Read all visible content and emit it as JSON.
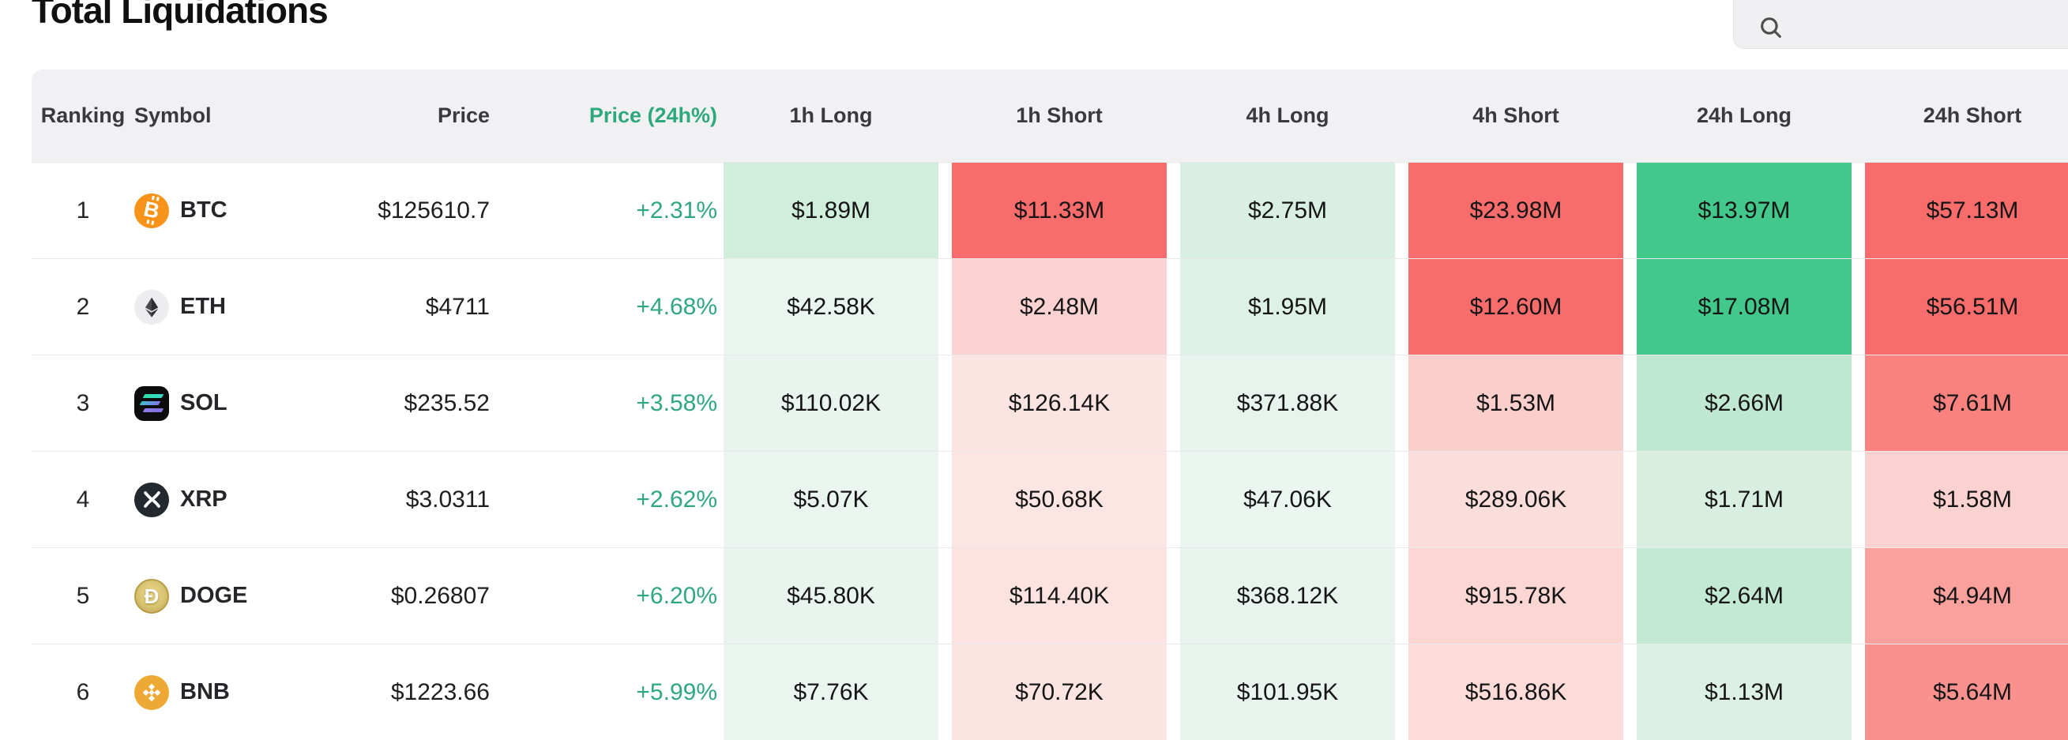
{
  "page": {
    "title": "Total Liquidations"
  },
  "search": {
    "value": ""
  },
  "colors": {
    "positive_text": "#2fa87e",
    "strong_red": "#f96c6c",
    "strong_green": "#42c88b",
    "header_bg": "#f1f1f4"
  },
  "table": {
    "headers": [
      "Ranking",
      "Symbol",
      "Price",
      "Price (24h%)",
      "1h Long",
      "1h Short",
      "4h Long",
      "4h Short",
      "24h Long",
      "24h Short"
    ],
    "rows": [
      {
        "ranking": "1",
        "symbol": "BTC",
        "icon": "btc",
        "price": "$125610.7",
        "change": "+2.31%",
        "cells": [
          {
            "label": "1h Long",
            "value": "$1.89M",
            "bg": "#d1eedd"
          },
          {
            "label": "1h Short",
            "value": "$11.33M",
            "bg": "#f96c6c"
          },
          {
            "label": "4h Long",
            "value": "$2.75M",
            "bg": "#d9efe4"
          },
          {
            "label": "4h Short",
            "value": "$23.98M",
            "bg": "#f96c6c"
          },
          {
            "label": "24h Long",
            "value": "$13.97M",
            "bg": "#42c88b"
          },
          {
            "label": "24h Short",
            "value": "$57.13M",
            "bg": "#f96c6c"
          }
        ]
      },
      {
        "ranking": "2",
        "symbol": "ETH",
        "icon": "eth",
        "price": "$4711",
        "change": "+4.68%",
        "cells": [
          {
            "label": "1h Long",
            "value": "$42.58K",
            "bg": "#e9f5ee"
          },
          {
            "label": "1h Short",
            "value": "$2.48M",
            "bg": "#fad2d1"
          },
          {
            "label": "4h Long",
            "value": "$1.95M",
            "bg": "#def1e7"
          },
          {
            "label": "4h Short",
            "value": "$12.60M",
            "bg": "#f96c6c"
          },
          {
            "label": "24h Long",
            "value": "$17.08M",
            "bg": "#42c88b"
          },
          {
            "label": "24h Short",
            "value": "$56.51M",
            "bg": "#f96c6c"
          }
        ]
      },
      {
        "ranking": "3",
        "symbol": "SOL",
        "icon": "sol",
        "price": "$235.52",
        "change": "+3.58%",
        "cells": [
          {
            "label": "1h Long",
            "value": "$110.02K",
            "bg": "#e8f4ed"
          },
          {
            "label": "1h Short",
            "value": "$126.14K",
            "bg": "#fce4e2"
          },
          {
            "label": "4h Long",
            "value": "$371.88K",
            "bg": "#e7f3ec"
          },
          {
            "label": "4h Short",
            "value": "$1.53M",
            "bg": "#f9cecb"
          },
          {
            "label": "24h Long",
            "value": "$2.66M",
            "bg": "#c0e7d1"
          },
          {
            "label": "24h Short",
            "value": "$7.61M",
            "bg": "#f9827f"
          }
        ]
      },
      {
        "ranking": "4",
        "symbol": "XRP",
        "icon": "xrp",
        "price": "$3.0311",
        "change": "+2.62%",
        "cells": [
          {
            "label": "1h Long",
            "value": "$5.07K",
            "bg": "#ebf5f0"
          },
          {
            "label": "1h Short",
            "value": "$50.68K",
            "bg": "#fce5e3"
          },
          {
            "label": "4h Long",
            "value": "$47.06K",
            "bg": "#ecf6f1"
          },
          {
            "label": "4h Short",
            "value": "$289.06K",
            "bg": "#fbdedb"
          },
          {
            "label": "24h Long",
            "value": "$1.71M",
            "bg": "#d7eee0"
          },
          {
            "label": "24h Short",
            "value": "$1.58M",
            "bg": "#fbd2d0"
          }
        ]
      },
      {
        "ranking": "5",
        "symbol": "DOGE",
        "icon": "doge",
        "price": "$0.26807",
        "change": "+6.20%",
        "cells": [
          {
            "label": "1h Long",
            "value": "$45.80K",
            "bg": "#e9f4ee"
          },
          {
            "label": "1h Short",
            "value": "$114.40K",
            "bg": "#fce3e1"
          },
          {
            "label": "4h Long",
            "value": "$368.12K",
            "bg": "#e7f3ec"
          },
          {
            "label": "4h Short",
            "value": "$915.78K",
            "bg": "#fbd6d3"
          },
          {
            "label": "24h Long",
            "value": "$2.64M",
            "bg": "#c3e8d3"
          },
          {
            "label": "24h Short",
            "value": "$4.94M",
            "bg": "#faa09d"
          }
        ]
      },
      {
        "ranking": "6",
        "symbol": "BNB",
        "icon": "bnb",
        "price": "$1223.66",
        "change": "+5.99%",
        "cells": [
          {
            "label": "1h Long",
            "value": "$7.76K",
            "bg": "#ebf5f0"
          },
          {
            "label": "1h Short",
            "value": "$70.72K",
            "bg": "#fce4e2"
          },
          {
            "label": "4h Long",
            "value": "$101.95K",
            "bg": "#eaf4ef"
          },
          {
            "label": "4h Short",
            "value": "$516.86K",
            "bg": "#fcdbd8"
          },
          {
            "label": "24h Long",
            "value": "$1.13M",
            "bg": "#dcf0e5"
          },
          {
            "label": "24h Short",
            "value": "$5.64M",
            "bg": "#f9918e"
          }
        ]
      }
    ]
  }
}
